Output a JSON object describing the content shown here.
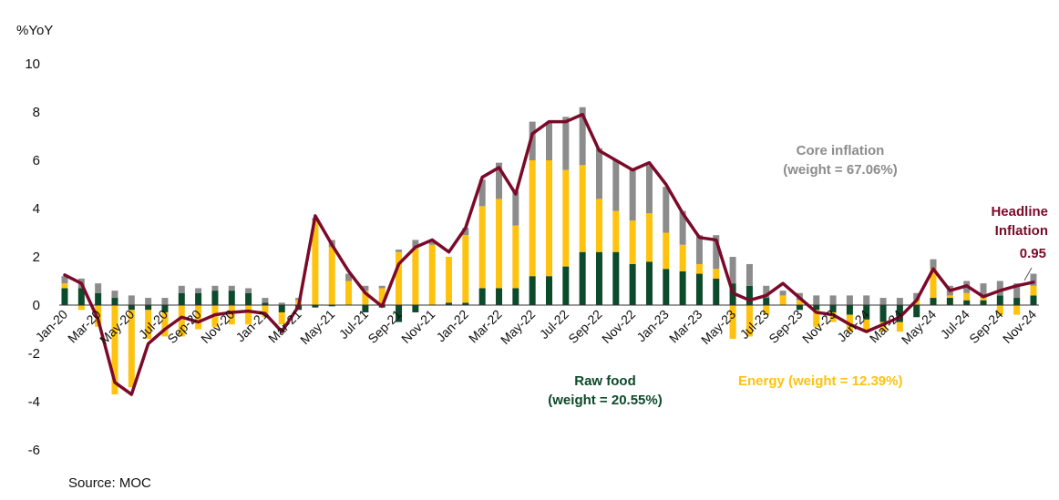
{
  "chart_data": {
    "type": "bar",
    "stacked": true,
    "ylabel": "%YoY",
    "ylim": [
      -6,
      10
    ],
    "yticks": [
      -6,
      -4,
      -2,
      0,
      2,
      4,
      6,
      8,
      10
    ],
    "x": [
      "Jan-20",
      "Feb-20",
      "Mar-20",
      "Apr-20",
      "May-20",
      "Jun-20",
      "Jul-20",
      "Aug-20",
      "Sep-20",
      "Oct-20",
      "Nov-20",
      "Dec-20",
      "Jan-21",
      "Feb-21",
      "Mar-21",
      "Apr-21",
      "May-21",
      "Jun-21",
      "Jul-21",
      "Aug-21",
      "Sep-21",
      "Oct-21",
      "Nov-21",
      "Dec-21",
      "Jan-22",
      "Feb-22",
      "Mar-22",
      "Apr-22",
      "May-22",
      "Jun-22",
      "Jul-22",
      "Aug-22",
      "Sep-22",
      "Oct-22",
      "Nov-22",
      "Dec-22",
      "Jan-23",
      "Feb-23",
      "Mar-23",
      "Apr-23",
      "May-23",
      "Jun-23",
      "Jul-23",
      "Aug-23",
      "Sep-23",
      "Oct-23",
      "Nov-23",
      "Dec-23",
      "Jan-24",
      "Feb-24",
      "Mar-24",
      "Apr-24",
      "May-24",
      "Jun-24",
      "Jul-24",
      "Aug-24",
      "Sep-24",
      "Oct-24",
      "Nov-24"
    ],
    "xtick_labels": [
      "Jan-20",
      "Mar-20",
      "May-20",
      "Jul-20",
      "Sep-20",
      "Nov-20",
      "Jan-21",
      "Mar-21",
      "May-21",
      "Jul-21",
      "Sep-21",
      "Nov-21",
      "Jan-22",
      "Mar-22",
      "May-22",
      "Jul-22",
      "Sep-22",
      "Nov-22",
      "Jan-23",
      "Mar-23",
      "May-23",
      "Jul-23",
      "Sep-23",
      "Nov-23",
      "Jan-24",
      "Mar-24",
      "May-24",
      "Jul-24",
      "Sep-24",
      "Nov-24"
    ],
    "series": [
      {
        "name": "Raw food",
        "color": "#0b4a2a",
        "kind": "bar",
        "values": [
          0.7,
          0.7,
          0.5,
          0.3,
          -0.2,
          -0.2,
          -0.3,
          0.5,
          0.5,
          0.6,
          0.6,
          0.5,
          0.1,
          -0.3,
          -0.2,
          -0.1,
          -0.05,
          0.0,
          -0.3,
          -0.1,
          -0.7,
          -0.3,
          0.0,
          0.1,
          0.1,
          0.7,
          0.7,
          0.7,
          1.2,
          1.2,
          1.6,
          2.2,
          2.2,
          2.2,
          1.7,
          1.8,
          1.5,
          1.4,
          1.3,
          1.1,
          0.9,
          0.8,
          0.3,
          0.0,
          -0.2,
          -0.2,
          -0.3,
          -0.4,
          -0.6,
          -0.7,
          -0.7,
          -0.5,
          0.3,
          0.3,
          0.2,
          0.2,
          0.4,
          0.3,
          0.4
        ]
      },
      {
        "name": "Energy",
        "color": "#ffc20e",
        "kind": "bar",
        "values": [
          0.2,
          -0.2,
          -0.9,
          -3.7,
          -3.2,
          -1.2,
          -1.0,
          -1.3,
          -1.0,
          -0.9,
          -0.8,
          -0.8,
          -0.5,
          -0.5,
          0.2,
          3.5,
          2.4,
          1.0,
          0.6,
          0.7,
          2.2,
          2.4,
          2.5,
          1.9,
          2.8,
          3.4,
          3.7,
          2.6,
          4.8,
          4.8,
          4.0,
          3.6,
          2.2,
          1.7,
          1.8,
          2.0,
          1.5,
          1.1,
          0.4,
          0.4,
          -1.4,
          -1.3,
          -0.4,
          0.4,
          0.2,
          -0.7,
          -0.4,
          -0.7,
          -0.5,
          -0.4,
          -0.4,
          0.2,
          1.2,
          0.1,
          0.3,
          0.1,
          -0.4,
          -0.4,
          0.4
        ]
      },
      {
        "name": "Core inflation",
        "color": "#8c8c8c",
        "kind": "bar",
        "values": [
          0.3,
          0.4,
          0.4,
          0.3,
          0.4,
          0.3,
          0.3,
          0.3,
          0.2,
          0.2,
          0.2,
          0.2,
          0.2,
          0.1,
          0.1,
          0.1,
          0.3,
          0.3,
          0.2,
          0.1,
          0.1,
          0.3,
          0.2,
          0.0,
          0.3,
          1.1,
          1.5,
          1.4,
          1.6,
          1.6,
          2.2,
          2.4,
          2.1,
          2.1,
          2.1,
          2.0,
          1.9,
          1.4,
          1.2,
          1.4,
          1.1,
          0.9,
          0.5,
          0.2,
          0.3,
          0.4,
          0.4,
          0.4,
          0.4,
          0.3,
          0.3,
          0.3,
          0.4,
          0.4,
          0.5,
          0.6,
          0.6,
          0.6,
          0.5
        ]
      },
      {
        "name": "Headline Inflation",
        "color": "#7b0a2a",
        "kind": "line",
        "values": [
          1.25,
          0.9,
          -0.6,
          -3.2,
          -3.7,
          -1.6,
          -1.0,
          -0.5,
          -0.7,
          -0.4,
          -0.3,
          -0.25,
          -0.35,
          -1.1,
          -0.05,
          3.7,
          2.5,
          1.4,
          0.5,
          -0.05,
          1.7,
          2.4,
          2.7,
          2.2,
          3.2,
          5.3,
          5.7,
          4.6,
          7.1,
          7.6,
          7.6,
          7.9,
          6.4,
          6.0,
          5.6,
          5.9,
          5.0,
          3.8,
          2.8,
          2.7,
          0.5,
          0.2,
          0.4,
          0.9,
          0.3,
          -0.3,
          -0.4,
          -0.8,
          -1.1,
          -0.8,
          -0.5,
          0.2,
          1.5,
          0.6,
          0.8,
          0.35,
          0.6,
          0.8,
          0.95
        ]
      }
    ],
    "annotations": {
      "core": [
        "Core inflation",
        "(weight = 67.06%)"
      ],
      "headline": [
        "Headline",
        "Inflation"
      ],
      "headline_value": "0.95",
      "rawfood": [
        "Raw food",
        "(weight = 20.55%)"
      ],
      "energy": "Energy (weight = 12.39%)"
    }
  },
  "source": "Source: MOC"
}
